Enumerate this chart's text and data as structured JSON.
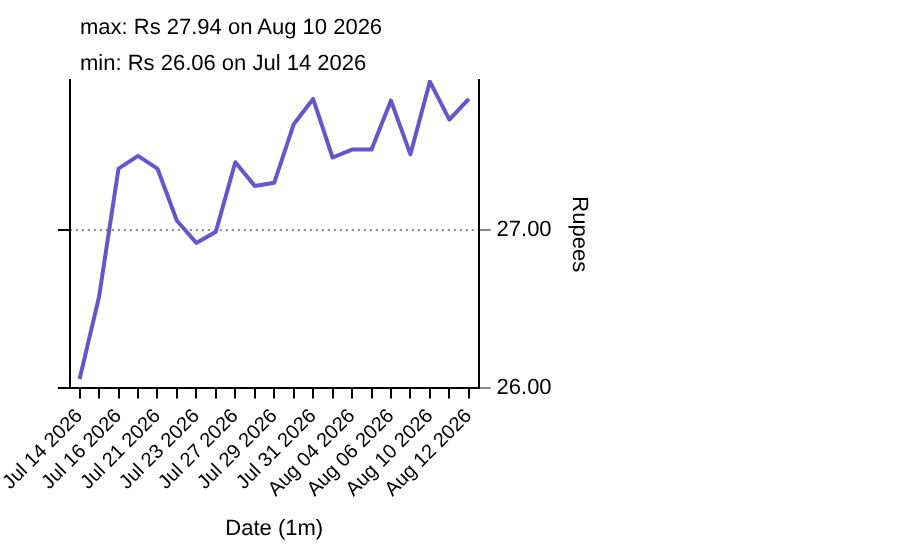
{
  "chart_data": {
    "type": "line",
    "title": "max: Rs 27.94 on Aug 10 2026",
    "subtitle": "min: Rs 26.06 on Jul 14 2026",
    "xlabel": "Date (1m)",
    "ylabel": "Rupees",
    "categories": [
      "Jul 14 2026",
      null,
      "Jul 16 2026",
      null,
      "Jul 21 2026",
      null,
      "Jul 23 2026",
      null,
      "Jul 27 2026",
      null,
      "Jul 29 2026",
      null,
      "Jul 31 2026",
      null,
      "Aug 04 2026",
      null,
      "Aug 06 2026",
      null,
      "Aug 10 2026",
      null,
      "Aug 12 2026"
    ],
    "series": [
      {
        "color": "#6655cc",
        "values": [
          26.06,
          26.58,
          27.39,
          27.47,
          27.39,
          27.06,
          26.92,
          26.99,
          27.43,
          27.28,
          27.3,
          27.67,
          27.83,
          27.46,
          27.51,
          27.51,
          27.82,
          27.48,
          27.94,
          27.7,
          27.83
        ]
      }
    ],
    "ylim": [
      26,
      27.95
    ],
    "yticks": [
      {
        "value": 26,
        "label": "26.00"
      },
      {
        "value": 27,
        "label": "27.00"
      }
    ],
    "grid": "y",
    "marker": "none",
    "line_style": "solid",
    "legend": false
  }
}
